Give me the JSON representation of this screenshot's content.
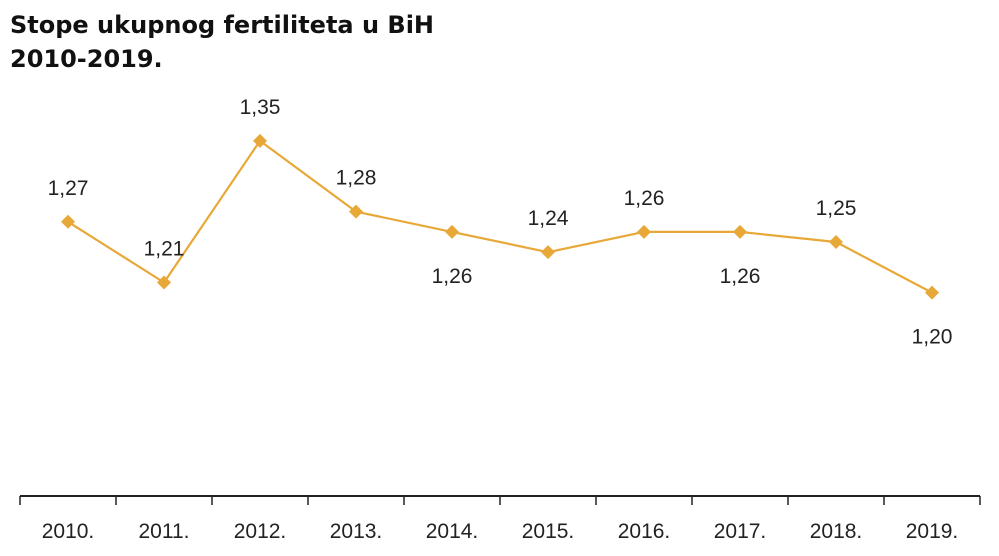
{
  "chart_data": {
    "type": "line",
    "title": "Stope ukupnog fertiliteta u BiH",
    "subtitle": "2010-2019.",
    "categories": [
      "2010.",
      "2011.",
      "2012.",
      "2013.",
      "2014.",
      "2015.",
      "2016.",
      "2017.",
      "2018.",
      "2019."
    ],
    "series": [
      {
        "values": [
          1.27,
          1.21,
          1.35,
          1.28,
          1.26,
          1.24,
          1.26,
          1.26,
          1.25,
          1.2
        ],
        "labels": [
          "1,27",
          "1,21",
          "1,35",
          "1,28",
          "1,26",
          "1,24",
          "1,26",
          "1,26",
          "1,25",
          "1,20"
        ],
        "label_positions": [
          "above",
          "above",
          "above",
          "above",
          "below",
          "above",
          "above",
          "below",
          "above",
          "below"
        ]
      }
    ],
    "ylim": [
      1.0,
      1.42
    ],
    "grid": false,
    "line_color": "#E8A838",
    "axis_color": "#222222"
  }
}
